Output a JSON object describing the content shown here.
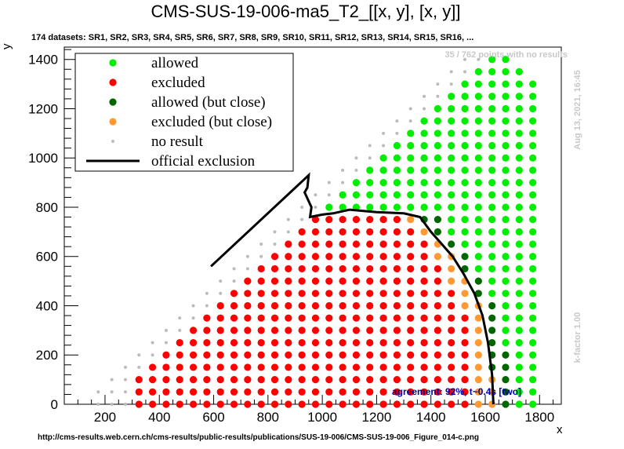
{
  "chart_data": {
    "type": "scatter",
    "title": "CMS-SUS-19-006-ma5_T2_[[x, y], [x, y]]",
    "subtitle": "174 datasets: SR1, SR2, SR3, SR4, SR5, SR6, SR7, SR8, SR9, SR10, SR11, SR12, SR13, SR14, SR15, SR16, ...",
    "xlabel": "x",
    "ylabel": "y",
    "xlim": [
      50,
      1880
    ],
    "ylim": [
      0,
      1450
    ],
    "x_ticks": [
      200,
      400,
      600,
      800,
      1000,
      1200,
      1400,
      1600,
      1800
    ],
    "y_ticks": [
      0,
      200,
      400,
      600,
      800,
      1000,
      1200,
      1400
    ],
    "no_result_note": "35 / 762 points with no results",
    "timestamp": "Aug 13, 2021, 16:45",
    "kfactor": "k-factor 1.00",
    "agreement": "agreement: 92%, t~0.4s [two]",
    "footer_url": "http://cms-results.web.cern.ch/cms-results/public-results/publications/SUS-19-006/CMS-SUS-19-006_Figure_014-c.png",
    "legend": [
      {
        "label": "allowed",
        "color": "#00ee00",
        "marker": "dot"
      },
      {
        "label": "excluded",
        "color": "#ff0000",
        "marker": "dot"
      },
      {
        "label": "allowed (but close)",
        "color": "#006600",
        "marker": "dot"
      },
      {
        "label": "excluded (but close)",
        "color": "#ff9933",
        "marker": "dot"
      },
      {
        "label": "no result",
        "color": "#bbbbbb",
        "marker": "small-dot"
      },
      {
        "label": "official exclusion",
        "color": "#000000",
        "marker": "line"
      }
    ],
    "grid": {
      "x_start": 175,
      "x_step": 50,
      "y_step": 50,
      "lower_bound": "y <= x - 100 (approx, from 0)",
      "upper_limit": 1425
    },
    "official_exclusion": [
      [
        590,
        560
      ],
      [
        950,
        930
      ],
      [
        945,
        880
      ],
      [
        935,
        860
      ],
      [
        960,
        800
      ],
      [
        955,
        760
      ],
      [
        1000,
        770
      ],
      [
        1040,
        775
      ],
      [
        1100,
        790
      ],
      [
        1200,
        780
      ],
      [
        1300,
        775
      ],
      [
        1360,
        760
      ],
      [
        1400,
        700
      ],
      [
        1440,
        650
      ],
      [
        1480,
        600
      ],
      [
        1520,
        530
      ],
      [
        1560,
        450
      ],
      [
        1590,
        360
      ],
      [
        1610,
        250
      ],
      [
        1625,
        120
      ],
      [
        1630,
        0
      ]
    ]
  }
}
